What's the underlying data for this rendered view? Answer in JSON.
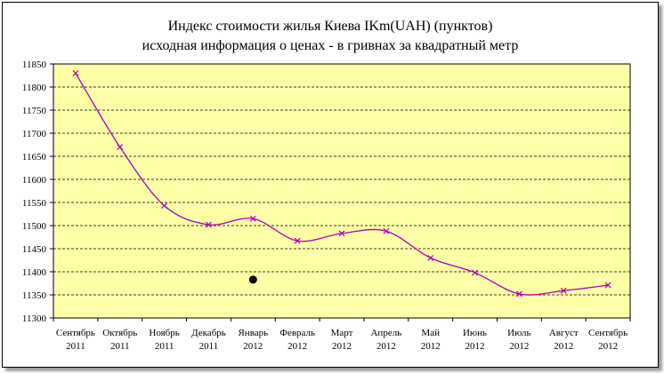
{
  "chart_data": {
    "type": "line",
    "title_line1": "Индекс стоимости жилья Киева   IKm(UAH)    (пунктов)",
    "title_line2": "исходная  информация о ценах - в гривнах за квадратный метр",
    "categories": [
      {
        "month": "Сентябрь",
        "year": "2011"
      },
      {
        "month": "Октябрь",
        "year": "2011"
      },
      {
        "month": "Ноябрь",
        "year": "2011"
      },
      {
        "month": "Декабрь",
        "year": "2011"
      },
      {
        "month": "Январь",
        "year": "2012"
      },
      {
        "month": "Февраль",
        "year": "2012"
      },
      {
        "month": "Март",
        "year": "2012"
      },
      {
        "month": "Апрель",
        "year": "2012"
      },
      {
        "month": "Май",
        "year": "2012"
      },
      {
        "month": "Июнь",
        "year": "2012"
      },
      {
        "month": "Июль",
        "year": "2012"
      },
      {
        "month": "Август",
        "year": "2012"
      },
      {
        "month": "Сентябрь",
        "year": "2012"
      }
    ],
    "values": [
      11830,
      11670,
      11543,
      11502,
      11515,
      11467,
      11483,
      11488,
      11430,
      11398,
      11352,
      11359,
      11371
    ],
    "ylim": [
      11300,
      11850
    ],
    "yticks": [
      11300,
      11350,
      11400,
      11450,
      11500,
      11550,
      11600,
      11650,
      11700,
      11750,
      11800,
      11850
    ],
    "grid": true,
    "marker_point": {
      "category_index": 4,
      "value": 11383
    },
    "colors": {
      "plot_background": "#ffffa8",
      "line": "#b000b0",
      "gridline": "#000000",
      "marker_point": "#000000"
    }
  }
}
